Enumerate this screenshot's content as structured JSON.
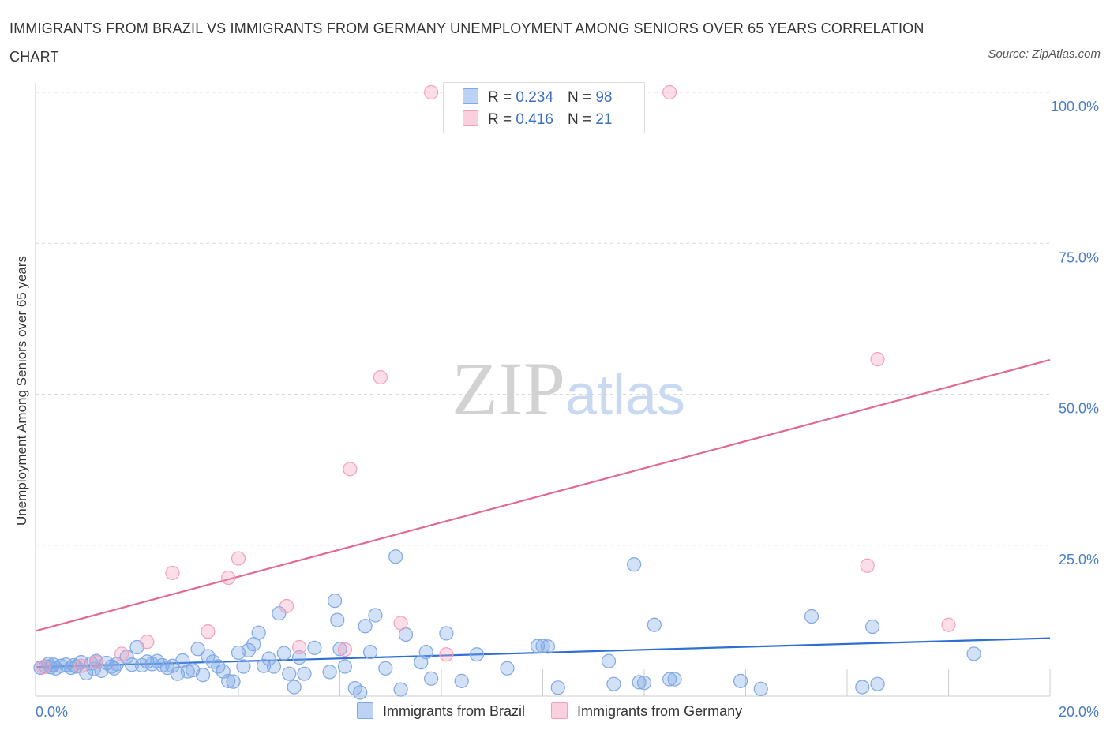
{
  "chart_data": {
    "type": "scatter",
    "title": "IMMIGRANTS FROM BRAZIL VS IMMIGRANTS FROM GERMANY UNEMPLOYMENT AMONG SENIORS OVER 65 YEARS CORRELATION CHART",
    "source": "Source: ZipAtlas.com",
    "ylabel": "Unemployment Among Seniors over 65 years",
    "xlabel": "",
    "xlim": [
      0,
      20
    ],
    "ylim": [
      0,
      100
    ],
    "x_tick_labels": [
      "0.0%",
      "20.0%"
    ],
    "y_ticks": [
      25,
      50,
      75,
      100
    ],
    "y_tick_labels": [
      "25.0%",
      "50.0%",
      "75.0%",
      "100.0%"
    ],
    "grid": true,
    "watermark": "ZIPatlas",
    "legend": [
      {
        "name": "Immigrants from Brazil",
        "r_label": "R =",
        "r": "0.234",
        "n_label": "N =",
        "n": "98",
        "color": "#7fa8e6"
      },
      {
        "name": "Immigrants from Germany",
        "r_label": "R =",
        "r": "0.416",
        "n_label": "N =",
        "n": "21",
        "color": "#f4a0bb"
      }
    ],
    "series": [
      {
        "name": "Immigrants from Brazil",
        "color": "#7fa8e6",
        "trend": {
          "x": [
            0,
            20
          ],
          "y": [
            4.8,
            9.6
          ],
          "color": "#2f6fd3"
        },
        "points": [
          [
            0.1,
            4.7
          ],
          [
            0.2,
            4.9
          ],
          [
            0.25,
            5.3
          ],
          [
            0.3,
            4.8
          ],
          [
            0.35,
            5.2
          ],
          [
            0.4,
            4.6
          ],
          [
            0.5,
            5.0
          ],
          [
            0.6,
            5.2
          ],
          [
            0.7,
            4.7
          ],
          [
            0.75,
            5.1
          ],
          [
            0.8,
            4.9
          ],
          [
            0.9,
            5.6
          ],
          [
            1.0,
            3.8
          ],
          [
            1.1,
            5.4
          ],
          [
            1.15,
            4.5
          ],
          [
            1.2,
            5.8
          ],
          [
            1.3,
            4.2
          ],
          [
            1.4,
            5.5
          ],
          [
            1.5,
            4.9
          ],
          [
            1.55,
            4.6
          ],
          [
            1.6,
            5.3
          ],
          [
            1.8,
            6.5
          ],
          [
            1.9,
            5.2
          ],
          [
            2.0,
            8.1
          ],
          [
            2.1,
            5.1
          ],
          [
            2.2,
            5.7
          ],
          [
            2.3,
            5.3
          ],
          [
            2.4,
            5.8
          ],
          [
            2.5,
            5.1
          ],
          [
            2.6,
            4.7
          ],
          [
            2.7,
            5.0
          ],
          [
            2.8,
            3.7
          ],
          [
            2.9,
            5.9
          ],
          [
            3.0,
            4.1
          ],
          [
            3.1,
            4.3
          ],
          [
            3.2,
            7.8
          ],
          [
            3.3,
            3.5
          ],
          [
            3.4,
            6.6
          ],
          [
            3.5,
            5.7
          ],
          [
            3.6,
            4.9
          ],
          [
            3.7,
            4.1
          ],
          [
            3.8,
            2.5
          ],
          [
            3.9,
            2.4
          ],
          [
            4.0,
            7.2
          ],
          [
            4.1,
            4.9
          ],
          [
            4.2,
            7.6
          ],
          [
            4.3,
            8.6
          ],
          [
            4.4,
            10.5
          ],
          [
            4.5,
            5.0
          ],
          [
            4.6,
            6.2
          ],
          [
            4.7,
            4.9
          ],
          [
            4.8,
            13.7
          ],
          [
            4.9,
            7.1
          ],
          [
            5.0,
            3.7
          ],
          [
            5.1,
            1.5
          ],
          [
            5.2,
            6.4
          ],
          [
            5.3,
            3.7
          ],
          [
            5.5,
            8.0
          ],
          [
            5.8,
            4.0
          ],
          [
            5.9,
            15.8
          ],
          [
            5.95,
            12.6
          ],
          [
            6.0,
            7.8
          ],
          [
            6.1,
            4.9
          ],
          [
            6.3,
            1.3
          ],
          [
            6.4,
            0.6
          ],
          [
            6.5,
            11.6
          ],
          [
            6.6,
            7.3
          ],
          [
            6.7,
            13.4
          ],
          [
            6.9,
            4.6
          ],
          [
            7.2,
            1.1
          ],
          [
            7.3,
            10.2
          ],
          [
            7.6,
            5.6
          ],
          [
            7.7,
            7.3
          ],
          [
            7.8,
            2.9
          ],
          [
            8.1,
            10.4
          ],
          [
            8.7,
            6.9
          ],
          [
            9.3,
            4.6
          ],
          [
            9.9,
            8.3
          ],
          [
            10.0,
            8.3
          ],
          [
            10.3,
            1.4
          ],
          [
            11.3,
            5.8
          ],
          [
            11.4,
            2.0
          ],
          [
            11.8,
            21.8
          ],
          [
            11.9,
            2.3
          ],
          [
            12.0,
            2.2
          ],
          [
            12.2,
            11.8
          ],
          [
            12.6,
            2.8
          ],
          [
            13.9,
            2.5
          ],
          [
            14.3,
            1.2
          ],
          [
            15.3,
            13.2
          ],
          [
            16.3,
            1.5
          ],
          [
            16.5,
            11.5
          ],
          [
            16.6,
            2.0
          ],
          [
            18.5,
            7.0
          ],
          [
            10.1,
            8.2
          ],
          [
            8.4,
            2.5
          ],
          [
            12.5,
            2.8
          ],
          [
            7.1,
            23.1
          ]
        ]
      },
      {
        "name": "Immigrants from Germany",
        "color": "#f4a0bb",
        "trend": {
          "x": [
            0,
            20
          ],
          "y": [
            10.8,
            55.7
          ],
          "color": "#e06a94"
        },
        "points": [
          [
            0.15,
            4.8
          ],
          [
            0.9,
            5.0
          ],
          [
            1.2,
            5.6
          ],
          [
            1.7,
            7.0
          ],
          [
            2.2,
            9.0
          ],
          [
            2.7,
            20.4
          ],
          [
            3.4,
            10.7
          ],
          [
            3.8,
            19.6
          ],
          [
            4.0,
            22.8
          ],
          [
            4.95,
            14.9
          ],
          [
            5.2,
            8.1
          ],
          [
            6.1,
            7.7
          ],
          [
            6.2,
            37.6
          ],
          [
            6.8,
            52.8
          ],
          [
            7.2,
            12.1
          ],
          [
            8.1,
            6.9
          ],
          [
            7.8,
            100.0
          ],
          [
            12.5,
            100.0
          ],
          [
            16.4,
            21.6
          ],
          [
            16.6,
            55.8
          ],
          [
            18.0,
            11.8
          ]
        ]
      }
    ]
  }
}
